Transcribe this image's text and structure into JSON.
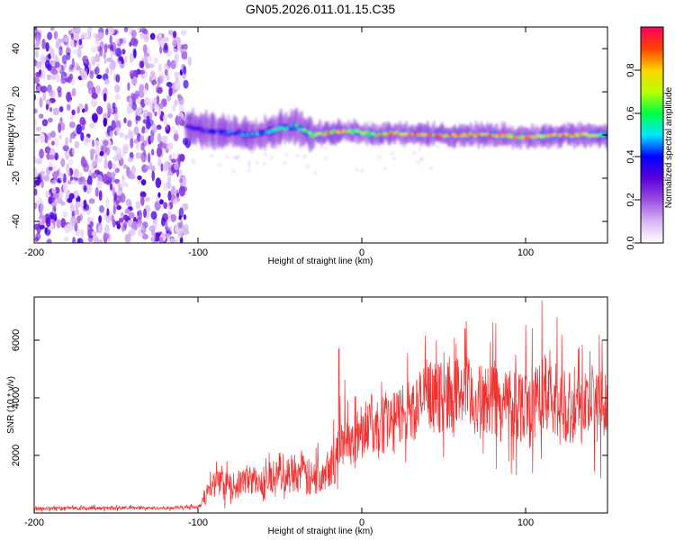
{
  "title": "GN05.2026.011.01.15.C35",
  "chart_data": [
    {
      "type": "heatmap",
      "title": "GN05.2026.011.01.15.C35",
      "xlabel": "Height of straight line (km)",
      "ylabel": "Frequency (Hz)",
      "xlim": [
        -200,
        150
      ],
      "ylim": [
        -50,
        50
      ],
      "x_ticks": [
        -200,
        -100,
        0,
        100
      ],
      "y_ticks": [
        -40,
        -20,
        0,
        20,
        40
      ],
      "x_tick_labels": [
        "-200",
        "-100",
        "0",
        "100"
      ],
      "y_tick_labels": [
        "-40",
        "-20",
        "0",
        "20",
        "40"
      ],
      "noise_region_x": [
        -200,
        -107
      ],
      "signal_start_x": -107,
      "signal_ridge": {
        "x": [
          -107,
          -95,
          -80,
          -65,
          -50,
          -40,
          -30,
          -20,
          -10,
          0,
          10,
          20,
          40,
          60,
          80,
          100,
          120,
          140,
          150
        ],
        "freq": [
          4,
          2,
          1,
          0,
          3,
          4,
          0,
          1,
          2,
          1,
          0,
          1,
          0,
          0,
          0,
          -1,
          0,
          0,
          0
        ],
        "peak_amplitude": [
          0.35,
          0.4,
          0.45,
          0.5,
          0.55,
          0.55,
          0.75,
          0.85,
          0.8,
          0.75,
          0.85,
          0.9,
          0.9,
          0.95,
          0.9,
          0.85,
          0.9,
          0.85,
          0.5
        ]
      },
      "colorbar": {
        "label": "Normalized spectral amplitude",
        "range": [
          0,
          1
        ],
        "ticks": [
          0.0,
          0.2,
          0.4,
          0.6,
          0.8
        ],
        "tick_labels": [
          "0.0",
          "0.2",
          "0.4",
          "0.6",
          "0.8"
        ],
        "colors": [
          "#ffffff",
          "#d7b6f2",
          "#9a4ee0",
          "#5a00d8",
          "#0000ff",
          "#00e8ff",
          "#00ff44",
          "#b8ff00",
          "#ffd400",
          "#ff4000",
          "#ff0060"
        ]
      }
    },
    {
      "type": "line",
      "xlabel": "Height of straight line (km)",
      "ylabel": "SNR (10 * v/v)",
      "xlim": [
        -200,
        150
      ],
      "ylim": [
        0,
        7500
      ],
      "x_ticks": [
        -200,
        -100,
        0,
        100
      ],
      "y_ticks": [
        2000,
        4000,
        6000
      ],
      "x_tick_labels": [
        "-200",
        "-100",
        "0",
        "100"
      ],
      "y_tick_labels": [
        "2000",
        "4000",
        "6000"
      ],
      "color": "#ee3333",
      "series": [
        {
          "name": "SNR",
          "x": [
            -200,
            -180,
            -160,
            -140,
            -120,
            -100,
            -95,
            -90,
            -85,
            -80,
            -75,
            -70,
            -65,
            -60,
            -55,
            -50,
            -45,
            -40,
            -35,
            -30,
            -25,
            -20,
            -15,
            -10,
            -5,
            0,
            5,
            10,
            15,
            20,
            25,
            30,
            35,
            40,
            45,
            50,
            55,
            60,
            65,
            70,
            75,
            80,
            85,
            90,
            95,
            100,
            105,
            110,
            115,
            120,
            125,
            130,
            135,
            140,
            145,
            150
          ],
          "values": [
            150,
            170,
            160,
            180,
            170,
            220,
            600,
            1100,
            1000,
            900,
            1000,
            1200,
            1100,
            900,
            1300,
            1500,
            1300,
            1500,
            1300,
            1100,
            1400,
            1700,
            1900,
            2800,
            2400,
            3000,
            3200,
            2800,
            3300,
            3100,
            3600,
            3500,
            3800,
            4200,
            3900,
            4100,
            4000,
            4300,
            4100,
            3800,
            3900,
            4000,
            3700,
            3900,
            3800,
            3800,
            3600,
            4200,
            3900,
            3700,
            3800,
            3600,
            3700,
            3800,
            3700,
            3800
          ],
          "noise_amplitude": [
            60,
            60,
            60,
            60,
            60,
            60,
            300,
            400,
            450,
            450,
            500,
            500,
            550,
            500,
            600,
            650,
            700,
            700,
            700,
            700,
            700,
            800,
            850,
            900,
            900,
            950,
            1000,
            1050,
            1050,
            1100,
            1100,
            1150,
            1150,
            1200,
            1200,
            1250,
            1250,
            1300,
            1300,
            1300,
            1300,
            1300,
            1300,
            1350,
            1350,
            1400,
            1400,
            1450,
            1400,
            1400,
            1350,
            1350,
            1350,
            1300,
            1300,
            1300
          ]
        }
      ],
      "notable_peaks": [
        {
          "x": -14,
          "value": 5700
        },
        {
          "x": 63,
          "value": 6400
        },
        {
          "x": 110,
          "value": 7400
        },
        {
          "x": 145,
          "value": 6200
        }
      ]
    }
  ]
}
